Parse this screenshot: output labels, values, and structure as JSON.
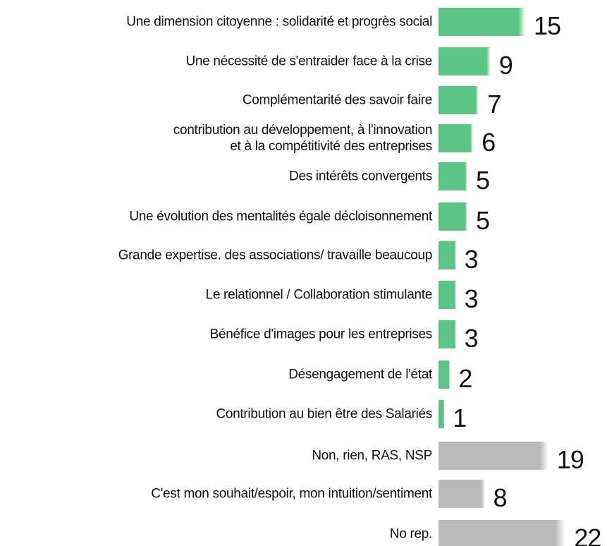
{
  "chart_data": {
    "type": "bar",
    "orientation": "horizontal",
    "categories": [
      "Une dimension citoyenne :  solidarité et  progrès social",
      "Une nécessité de s'entraider face à la crise",
      "Complémentarité  des savoir faire",
      "contribution au développement, à l'innovation\net à la compétitivité des entreprises",
      "Des intérêts convergents",
      "Une évolution des mentalités égale décloisonnement",
      "Grande  expertise. des associations/ travaille  beaucoup",
      "Le relationnel / Collaboration stimulante",
      "Bénéfice d'images pour les entreprises",
      "Désengagement de l'état",
      "Contribution au bien être des Salariés",
      "Non, rien, RAS, NSP",
      "C'est mon souhait/espoir, mon intuition/sentiment",
      "No rep."
    ],
    "values": [
      15,
      9,
      7,
      6,
      5,
      5,
      3,
      3,
      3,
      2,
      1,
      19,
      8,
      22
    ],
    "colors": [
      "#5cc285",
      "#5cc285",
      "#5cc285",
      "#5cc285",
      "#5cc285",
      "#5cc285",
      "#5cc285",
      "#5cc285",
      "#5cc285",
      "#5cc285",
      "#5cc285",
      "#b9b9b9",
      "#b9b9b9",
      "#b9b9b9"
    ]
  }
}
